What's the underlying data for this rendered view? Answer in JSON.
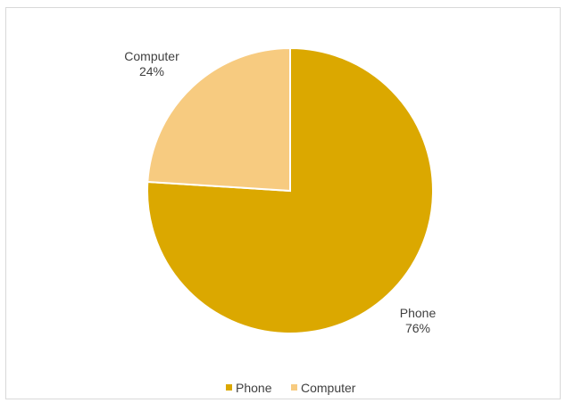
{
  "chart_data": {
    "type": "pie",
    "title": "",
    "categories": [
      "Phone",
      "Computer"
    ],
    "values": [
      76,
      24
    ],
    "value_labels": [
      "76%",
      "24%"
    ],
    "colors": [
      "#DBA800",
      "#F7CB80"
    ],
    "legend_position": "bottom",
    "start_angle": "12 o'clock",
    "direction": "clockwise"
  }
}
